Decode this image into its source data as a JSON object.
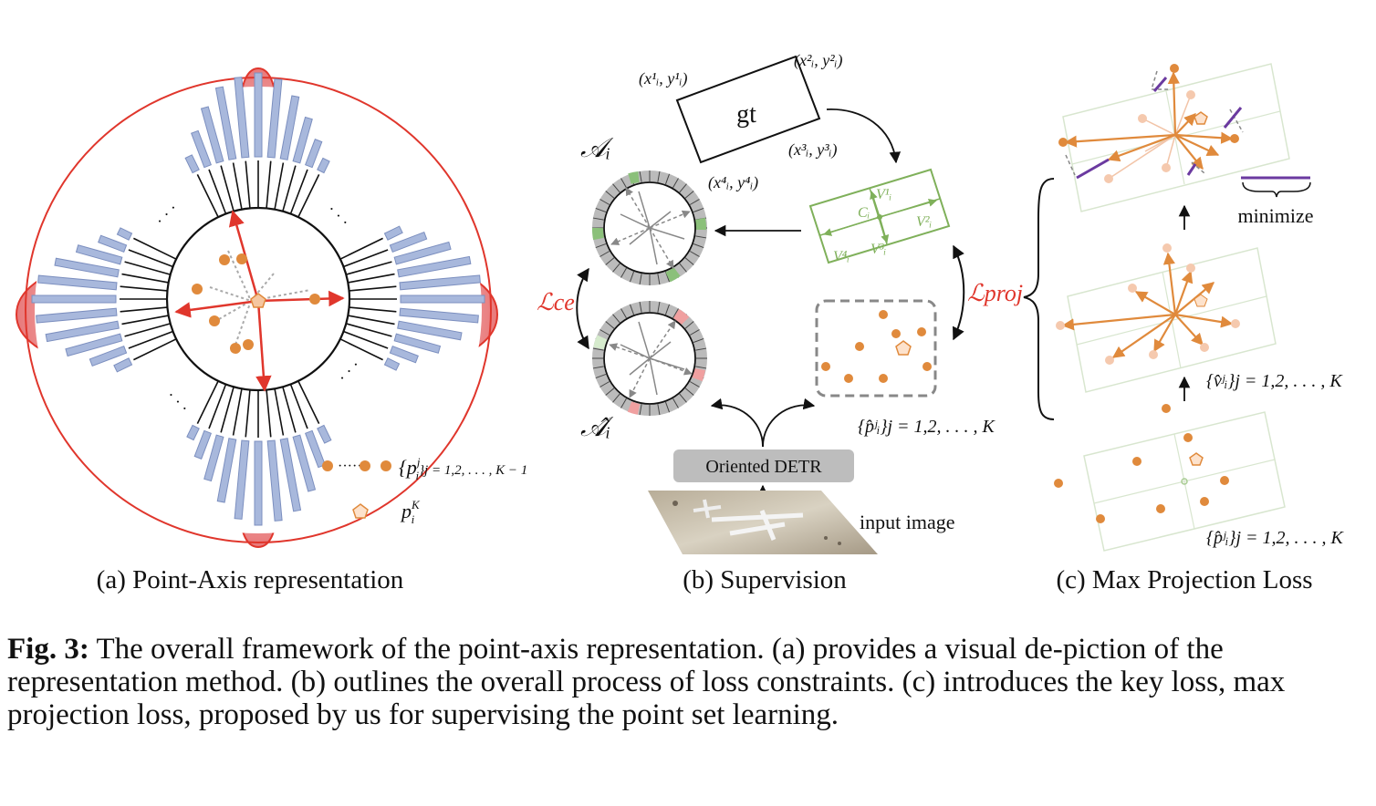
{
  "panels": {
    "a": {
      "label": "(a) Point-Axis representation",
      "legend_points": "{p",
      "legend_points_sup": "j",
      "legend_points_sub": "i",
      "legend_points_range": "}j = 1,2, . . . , K − 1",
      "legend_center": "p",
      "legend_center_sup": "K",
      "legend_center_sub": "i",
      "ellipsis": "· · ·"
    },
    "b": {
      "label": "(b) Supervision",
      "gt": "gt",
      "corner1": "(x¹ᵢ, y¹ᵢ)",
      "corner2": "(x²ᵢ, y²ᵢ)",
      "corner3": "(x³ᵢ, y³ᵢ)",
      "corner4": "(x⁴ᵢ, y⁴ᵢ)",
      "axis_gt": "𝒜ᵢ",
      "axis_pred": "𝒜̂ᵢ",
      "loss_ce": "ℒce",
      "loss_proj": "ℒproj",
      "center": "Cᵢ",
      "v1": "V¹ᵢ",
      "v2": "V²ᵢ",
      "v3": "V³ᵢ",
      "v4": "V⁴ᵢ",
      "pred_points": "{p̂ʲᵢ}j = 1,2, . . . , K",
      "detector": "Oriented DETR",
      "input": "input image"
    },
    "c": {
      "label": "(c) Max Projection  Loss",
      "minimize": "minimize",
      "vectors": "{v̂ʲᵢ}j = 1,2, . . . , K",
      "points": "{p̂ʲᵢ}j = 1,2, . . . , K"
    }
  },
  "caption": {
    "lead": "Fig. 3:",
    "text": " The overall framework of the point-axis representation. (a) provides a visual de-piction of the representation method. (b) outlines the overall process of loss constraints. (c) introduces the key loss, max projection loss, proposed by us for supervising the point set learning."
  },
  "colors": {
    "red": "#e0362c",
    "orange": "#e08a3c",
    "green": "#7fb05a",
    "bar": "#a8b8dc",
    "purple": "#6b3aa0"
  }
}
